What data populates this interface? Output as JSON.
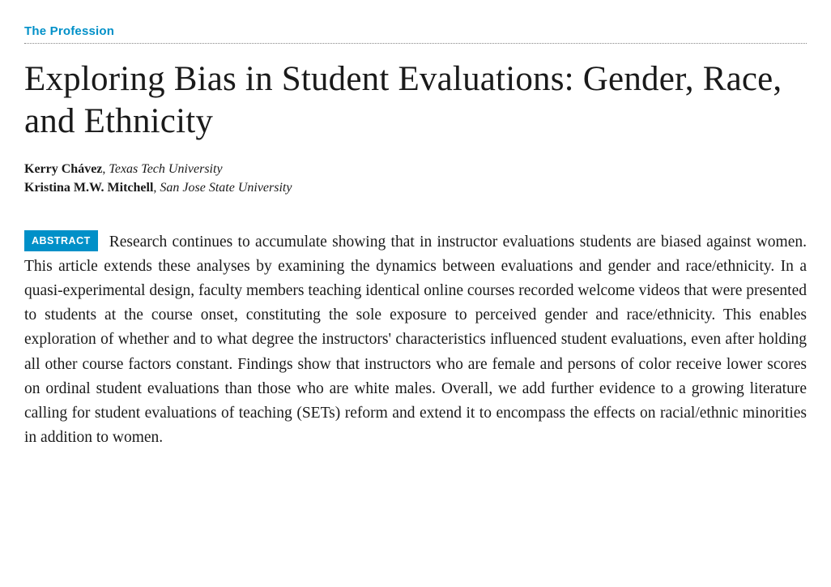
{
  "section_label": "The Profession",
  "title": "Exploring Bias in Student Evaluations: Gender, Race, and Ethnicity",
  "authors": [
    {
      "name": "Kerry Chávez",
      "affiliation": "Texas Tech University"
    },
    {
      "name": "Kristina M.W. Mitchell",
      "affiliation": "San Jose State University"
    }
  ],
  "abstract_badge": "ABSTRACT",
  "abstract_text": "Research continues to accumulate showing that in instructor evaluations students are biased against women. This article extends these analyses by examining the dynamics between evaluations and gender and race/ethnicity. In a quasi-experimental design, faculty members teaching identical online courses recorded welcome videos that were presented to students at the course onset, constituting the sole exposure to perceived gender and race/ethnicity. This enables exploration of whether and to what degree the instructors' characteristics influenced student evaluations, even after holding all other course factors constant. Findings show that instructors who are female and persons of color receive lower scores on ordinal student evaluations than those who are white males. Overall, we add further evidence to a growing literature calling for student evaluations of teaching (SETs) reform and extend it to encompass the effects on racial/ethnic minorities in addition to women.",
  "colors": {
    "accent": "#0090c8",
    "text": "#1a1a1a",
    "background": "#ffffff",
    "dotted_rule": "#888888"
  },
  "typography": {
    "section_label_fontsize": 15,
    "title_fontsize": 43,
    "author_fontsize": 16,
    "body_fontsize": 19.5,
    "badge_fontsize": 12.5
  }
}
